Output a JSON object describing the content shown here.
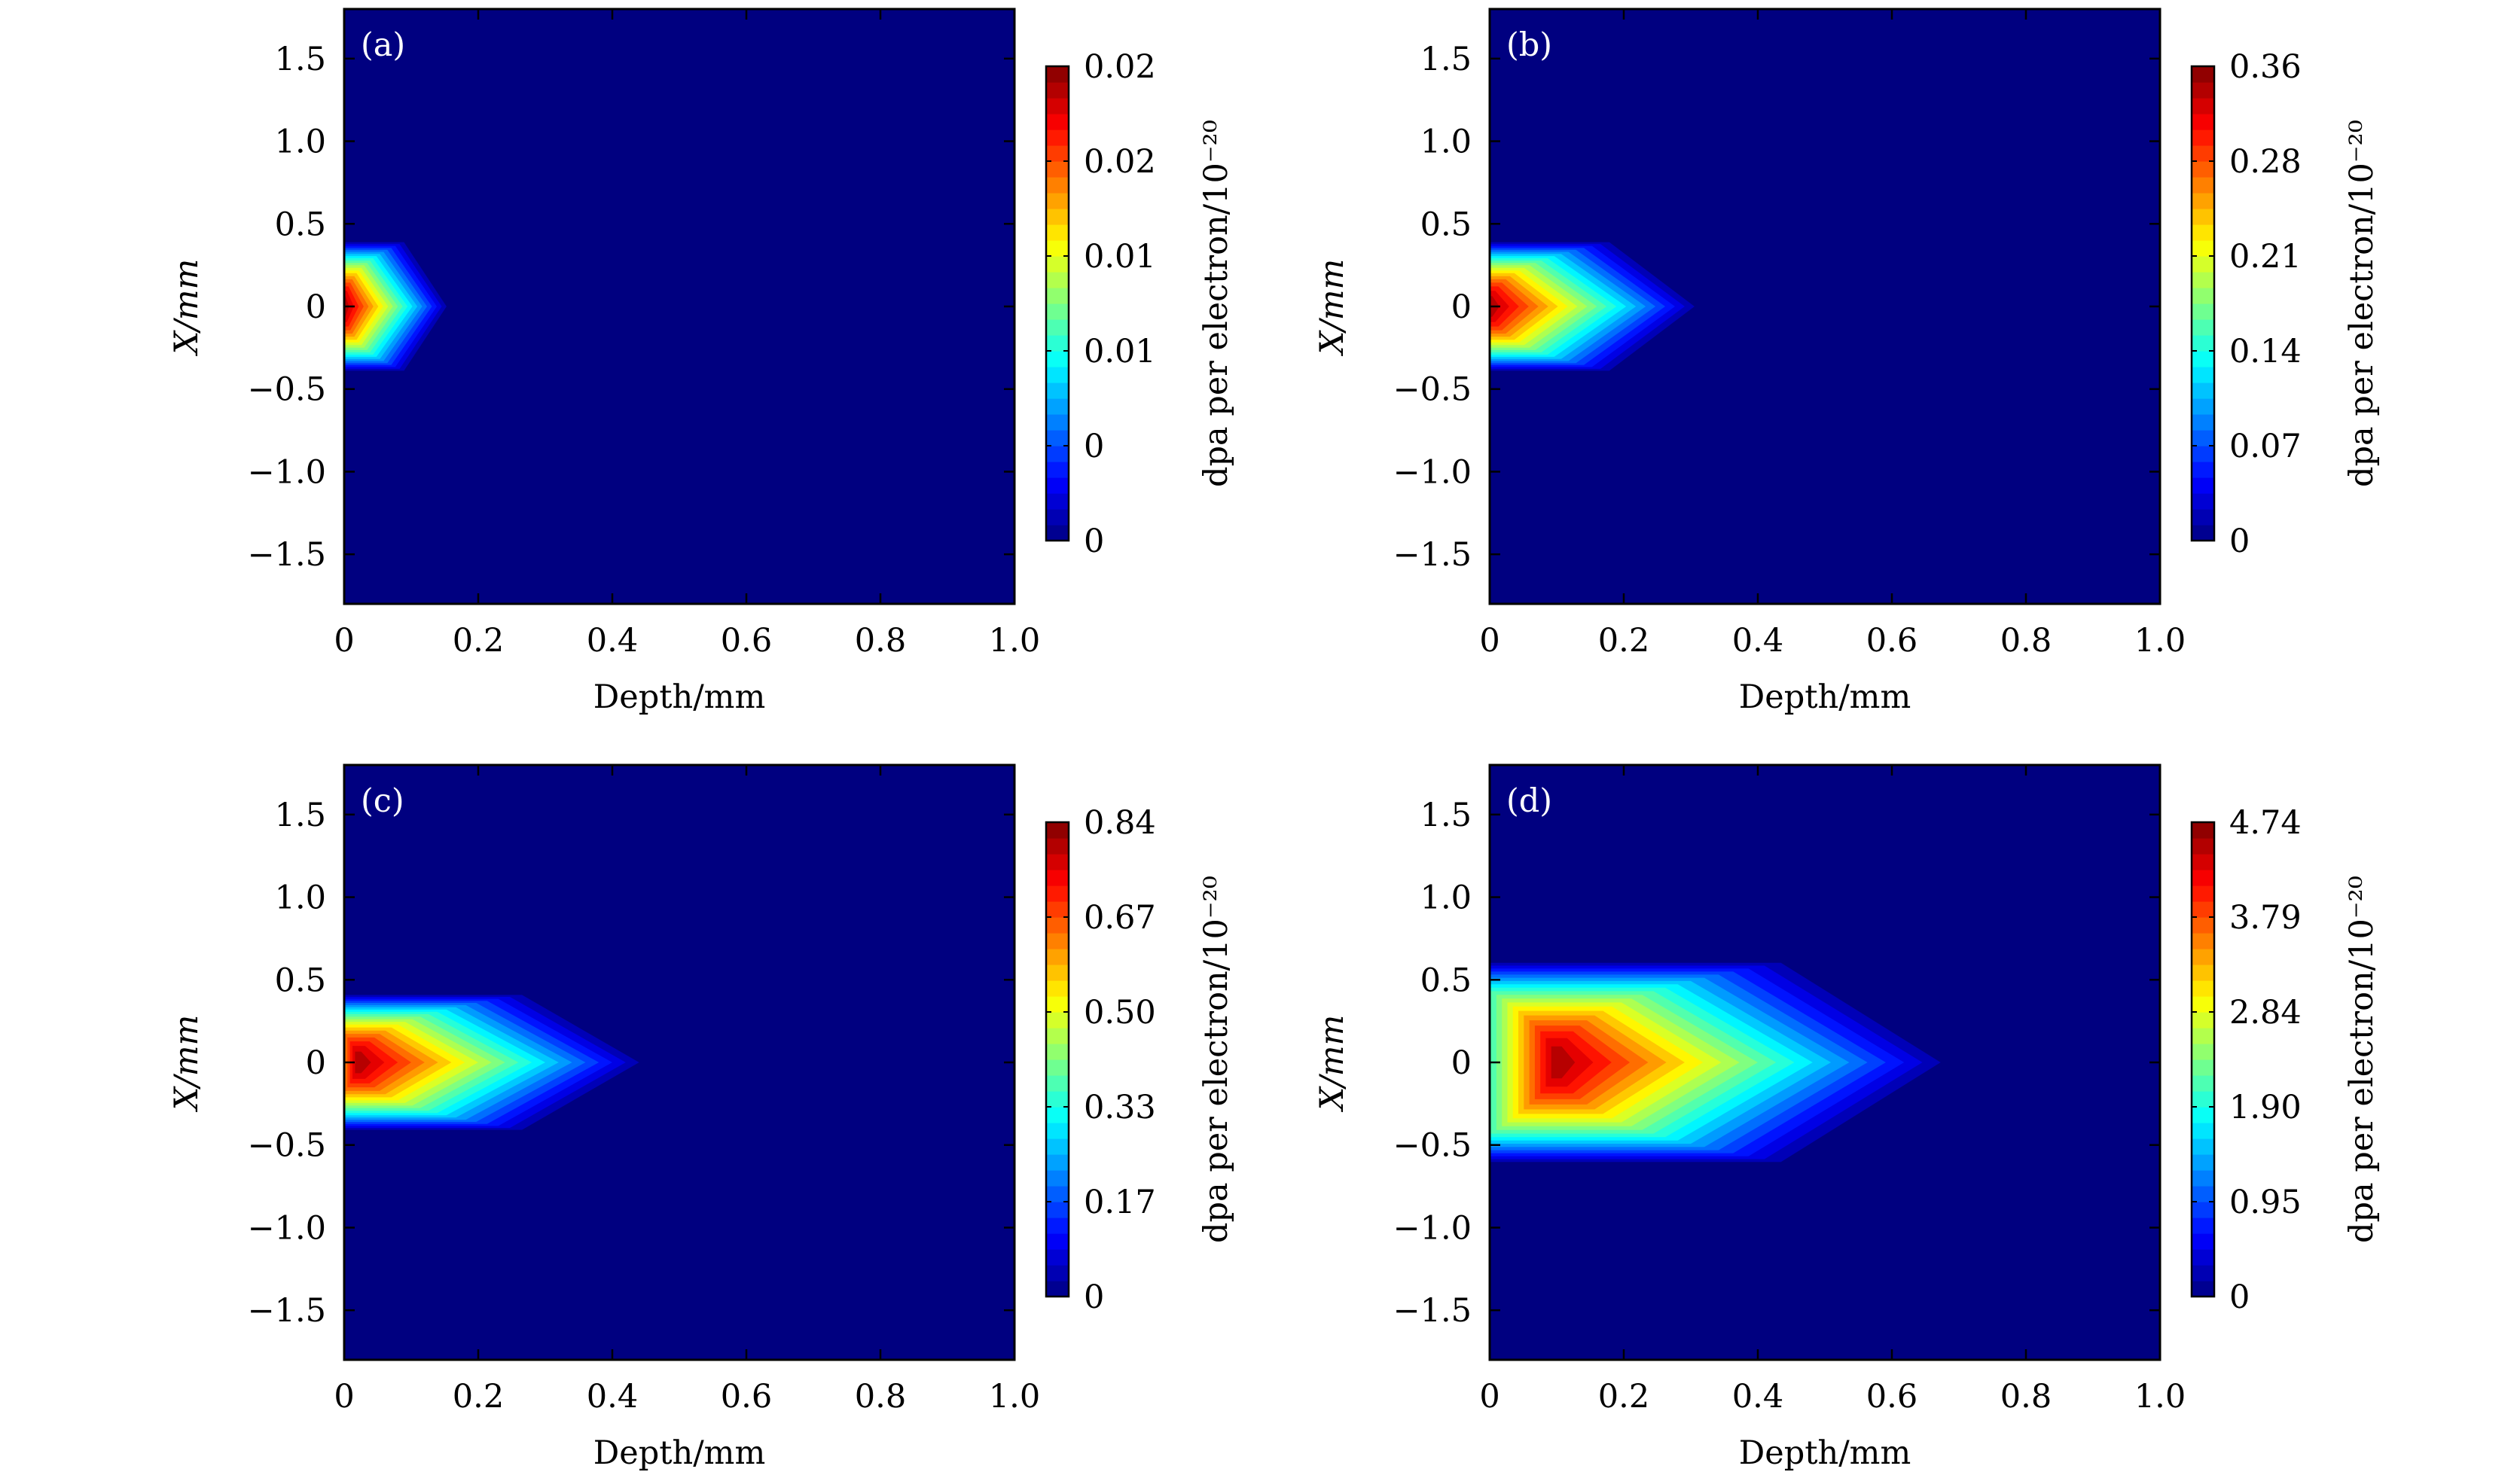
{
  "figure": {
    "panels": [
      {
        "label": "(a)",
        "xlabel": "Depth/mm",
        "ylabel": "X/mm",
        "xticks": [
          "0",
          "0.2",
          "0.4",
          "0.6",
          "0.8",
          "1.0"
        ],
        "yticks": [
          "1.5",
          "1.0",
          "0.5",
          "0",
          "−0.5",
          "−1.0",
          "−1.5"
        ],
        "colorbar_label": "dpa per electron/10⁻²⁰",
        "colorbar_ticks": [
          "0.02",
          "0.02",
          "0.01",
          "0.01",
          "0",
          "0"
        ]
      },
      {
        "label": "(b)",
        "xlabel": "Depth/mm",
        "ylabel": "X/mm",
        "xticks": [
          "0",
          "0.2",
          "0.4",
          "0.6",
          "0.8",
          "1.0"
        ],
        "yticks": [
          "1.5",
          "1.0",
          "0.5",
          "0",
          "−0.5",
          "−1.0",
          "−1.5"
        ],
        "colorbar_label": "dpa per electron/10⁻²⁰",
        "colorbar_ticks": [
          "0.36",
          "0.28",
          "0.21",
          "0.14",
          "0.07",
          "0"
        ]
      },
      {
        "label": "(c)",
        "xlabel": "Depth/mm",
        "ylabel": "X/mm",
        "xticks": [
          "0",
          "0.2",
          "0.4",
          "0.6",
          "0.8",
          "1.0"
        ],
        "yticks": [
          "1.5",
          "1.0",
          "0.5",
          "0",
          "−0.5",
          "−1.0",
          "−1.5"
        ],
        "colorbar_label": "dpa per electron/10⁻²⁰",
        "colorbar_ticks": [
          "0.84",
          "0.67",
          "0.50",
          "0.33",
          "0.17",
          "0"
        ]
      },
      {
        "label": "(d)",
        "xlabel": "Depth/mm",
        "ylabel": "X/mm",
        "xticks": [
          "0",
          "0.2",
          "0.4",
          "0.6",
          "0.8",
          "1.0"
        ],
        "yticks": [
          "1.5",
          "1.0",
          "0.5",
          "0",
          "−0.5",
          "−1.0",
          "−1.5"
        ],
        "colorbar_label": "dpa per electron/10⁻²⁰",
        "colorbar_ticks": [
          "4.74",
          "3.79",
          "2.84",
          "1.90",
          "0.95",
          "0"
        ]
      }
    ]
  },
  "chart_data": [
    {
      "type": "heatmap",
      "label": "(a)",
      "xlabel": "Depth/mm",
      "ylabel": "X/mm",
      "xlim": [
        0,
        1.0
      ],
      "ylim": [
        -1.8,
        1.8
      ],
      "colorbar": {
        "label": "dpa per electron/10⁻²⁰",
        "range": [
          0,
          0.02
        ],
        "colormap": "jet"
      },
      "peak": {
        "depth": 0.0,
        "x": 0.0
      },
      "extent": {
        "depth_max": 0.16,
        "x_halfwidth": 0.4
      },
      "colors": {
        "low": "#0000ff",
        "high": "#ff0000"
      }
    },
    {
      "type": "heatmap",
      "label": "(b)",
      "xlabel": "Depth/mm",
      "ylabel": "X/mm",
      "xlim": [
        0,
        1.0
      ],
      "ylim": [
        -1.8,
        1.8
      ],
      "colorbar": {
        "label": "dpa per electron/10⁻²⁰",
        "range": [
          0,
          0.36
        ],
        "colormap": "jet"
      },
      "peak": {
        "depth": 0.0,
        "x": 0.0
      },
      "extent": {
        "depth_max": 0.32,
        "x_halfwidth": 0.4
      },
      "colors": {
        "low": "#0000ff",
        "high": "#ff0000"
      }
    },
    {
      "type": "heatmap",
      "label": "(c)",
      "xlabel": "Depth/mm",
      "ylabel": "X/mm",
      "xlim": [
        0,
        1.0
      ],
      "ylim": [
        -1.8,
        1.8
      ],
      "colorbar": {
        "label": "dpa per electron/10⁻²⁰",
        "range": [
          0,
          0.84
        ],
        "colormap": "jet"
      },
      "peak": {
        "depth": 0.02,
        "x": 0.0
      },
      "extent": {
        "depth_max": 0.46,
        "x_halfwidth": 0.42
      },
      "colors": {
        "low": "#0000ff",
        "high": "#ff0000"
      }
    },
    {
      "type": "heatmap",
      "label": "(d)",
      "xlabel": "Depth/mm",
      "ylabel": "X/mm",
      "xlim": [
        0,
        1.0
      ],
      "ylim": [
        -1.8,
        1.8
      ],
      "colorbar": {
        "label": "dpa per electron/10⁻²⁰",
        "range": [
          0,
          4.74
        ],
        "colormap": "jet"
      },
      "peak": {
        "depth": 0.1,
        "x": 0.0
      },
      "extent": {
        "depth_max": 0.7,
        "x_halfwidth": 0.62
      },
      "colors": {
        "low": "#0000ff",
        "high": "#ff0000"
      }
    }
  ]
}
